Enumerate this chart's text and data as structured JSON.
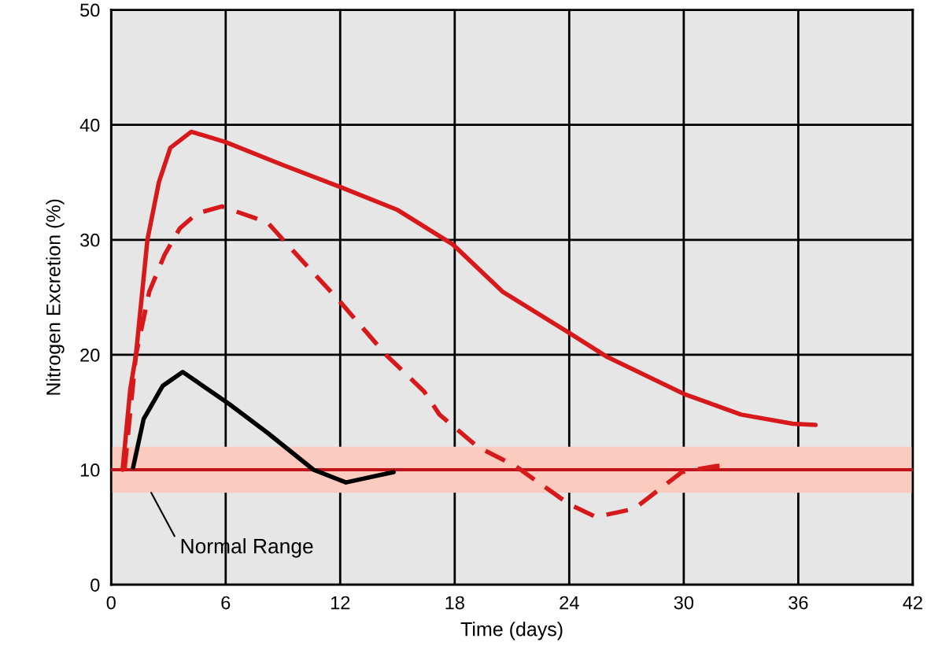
{
  "chart_data": {
    "type": "line",
    "xlabel": "Time (days)",
    "ylabel": "Nitrogen Excretion (%)",
    "xlim": [
      0,
      42
    ],
    "ylim": [
      0,
      50
    ],
    "xticks": [
      0,
      6,
      12,
      18,
      24,
      30,
      36,
      42
    ],
    "yticks": [
      0,
      10,
      20,
      30,
      40,
      50
    ],
    "grid": true,
    "series": [
      {
        "color": "#d7191c",
        "line_style": "solid",
        "x": [
          0.6,
          1.0,
          1.3,
          1.9,
          2.5,
          3.1,
          4.2,
          6,
          9,
          12,
          15,
          17.9,
          20.5,
          24,
          26,
          30,
          33,
          35.7,
          36.9
        ],
        "values": [
          10,
          17,
          20,
          30,
          35,
          38,
          39.4,
          38.5,
          36.5,
          34.6,
          32.6,
          29.6,
          25.5,
          21.9,
          19.8,
          16.6,
          14.8,
          14.0,
          13.9
        ]
      },
      {
        "color": "#d7191c",
        "line_style": "dashed",
        "x": [
          0.7,
          1.3,
          2.0,
          2.8,
          3.6,
          4.5,
          5.8,
          8.2,
          9.5,
          12,
          14.4,
          16.4,
          17.2,
          19.2,
          21.2,
          24,
          25.4,
          27.4,
          29.9,
          31.6,
          32.3
        ],
        "values": [
          10,
          20,
          25.5,
          28.7,
          31,
          32.3,
          32.9,
          31.5,
          29.1,
          24.6,
          20,
          16.8,
          14.8,
          12,
          10.3,
          7.0,
          5.9,
          6.6,
          9.8,
          10.3,
          10.4
        ]
      },
      {
        "color": "#000000",
        "line_style": "solid",
        "x": [
          1.15,
          1.7,
          2.7,
          3.75,
          6.2,
          8.2,
          10.6,
          12.3,
          14.8
        ],
        "values": [
          10.2,
          14.4,
          17.3,
          18.5,
          15.7,
          13.2,
          10,
          8.9,
          9.8
        ]
      }
    ],
    "bands": [
      {
        "axis": "y",
        "from": 8,
        "to": 12,
        "color": "#fbcbbf"
      }
    ],
    "ref_lines": [
      {
        "axis": "y",
        "value": 10,
        "color": "#c0141a",
        "line_style": "solid"
      }
    ],
    "annotations": [
      {
        "text": "Normal Range",
        "x": 2.1,
        "y": 8
      }
    ]
  }
}
